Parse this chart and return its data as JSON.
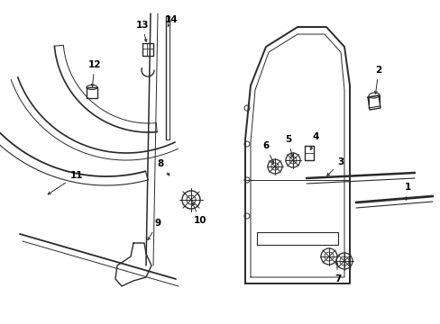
{
  "bg_color": "#ffffff",
  "line_color": "#2a2a2a",
  "label_color": "#000000",
  "figsize": [
    4.89,
    3.6
  ],
  "dpi": 100
}
